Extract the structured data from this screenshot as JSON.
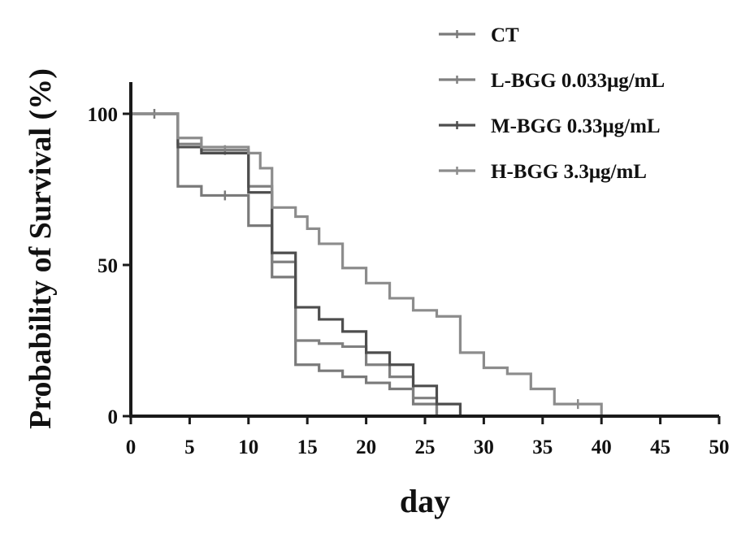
{
  "chart_data": {
    "type": "line",
    "subtype": "kaplan-meier step survival curve",
    "xlabel": "day",
    "ylabel": "Probability of Survival (%)",
    "xlim": [
      0,
      50
    ],
    "ylim": [
      0,
      100
    ],
    "xticks": [
      "0",
      "5",
      "10",
      "15",
      "20",
      "25",
      "30",
      "35",
      "40",
      "45",
      "50"
    ],
    "yticks": [
      "0",
      "50",
      "100"
    ],
    "grid": false,
    "legend_position": "top-right",
    "series": [
      {
        "name": "CT",
        "color": "#7a7a7a",
        "x": [
          0,
          4,
          6,
          10,
          12,
          14,
          16,
          18,
          20,
          22,
          24,
          26
        ],
        "y": [
          100,
          76,
          73,
          63,
          46,
          17,
          15,
          13,
          11,
          9,
          4,
          0
        ],
        "censor_x": [
          2,
          8
        ]
      },
      {
        "name": "L-BGG 0.033μg/mL",
        "color": "#808080",
        "x": [
          0,
          4,
          6,
          10,
          12,
          14,
          16,
          18,
          20,
          22,
          24,
          26
        ],
        "y": [
          100,
          90,
          88,
          76,
          51,
          25,
          24,
          23,
          17,
          13,
          6,
          0
        ],
        "censor_x": [
          8
        ]
      },
      {
        "name": "M-BGG 0.33μg/mL",
        "color": "#4d4d4d",
        "x": [
          0,
          4,
          6,
          10,
          12,
          14,
          16,
          18,
          20,
          22,
          24,
          26,
          28
        ],
        "y": [
          100,
          89,
          87,
          74,
          54,
          36,
          32,
          28,
          21,
          17,
          10,
          4,
          0
        ],
        "censor_x": []
      },
      {
        "name": "H-BGG 3.3μg/mL",
        "color": "#8c8c8c",
        "x": [
          0,
          4,
          6,
          10,
          11,
          12,
          14,
          15,
          16,
          18,
          20,
          22,
          24,
          26,
          28,
          30,
          32,
          34,
          36,
          38,
          40
        ],
        "y": [
          100,
          92,
          89,
          87,
          82,
          69,
          66,
          62,
          57,
          49,
          44,
          39,
          35,
          33,
          21,
          16,
          14,
          9,
          4,
          4,
          0
        ],
        "censor_x": [
          38
        ]
      }
    ]
  }
}
